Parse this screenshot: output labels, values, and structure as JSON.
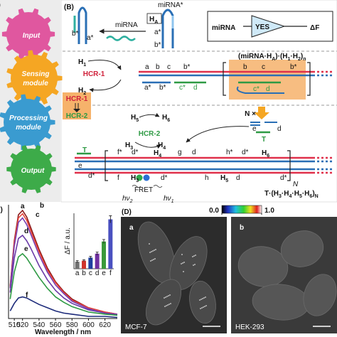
{
  "panel_a": {
    "label": "(A)",
    "modules": [
      [
        "Input"
      ],
      [
        "Sensing",
        "module"
      ],
      [
        "Processing",
        "module"
      ],
      [
        "Output"
      ]
    ]
  },
  "panel_b": {
    "label": "(B)",
    "mirna": "miRNA",
    "mirna_star": "miRNA*",
    "ha": [
      "H",
      "A"
    ],
    "gate": {
      "input": "miRNA",
      "logic": "YES",
      "output": "ΔF"
    },
    "hcr": [
      "HCR-1",
      "HCR-1",
      "HCR-2",
      "HCR-2"
    ],
    "h_labels": [
      [
        "H",
        "1"
      ],
      [
        "H",
        "2"
      ],
      [
        "H",
        "5"
      ],
      [
        "H",
        "6"
      ],
      [
        "H",
        "3"
      ],
      [
        "H",
        "4"
      ],
      [
        "H",
        "4"
      ],
      [
        "H",
        "6"
      ],
      [
        "H",
        "3"
      ],
      [
        "H",
        "5"
      ]
    ],
    "complex": [
      "(miRNA·H",
      "A",
      ")·(H",
      "1",
      "·H",
      "2",
      ")",
      "n"
    ],
    "domains": [
      "b*",
      "a*",
      "a*",
      "b*",
      "a",
      "b",
      "c",
      "b*",
      "a*",
      "b*",
      "c*",
      "d",
      "b",
      "c",
      "b*",
      "c*",
      "d",
      "e",
      "d",
      "f*",
      "d*",
      "g",
      "d",
      "h*",
      "d*",
      "f",
      "d*",
      "h",
      "d",
      "d*",
      "e",
      "d*"
    ],
    "n_times": "N ×",
    "n": "N",
    "t_labels": [
      "T",
      "T"
    ],
    "fret": "FRET",
    "photons": [
      [
        "hν",
        "2"
      ],
      [
        "hν",
        "1"
      ]
    ],
    "product": [
      "T·(H",
      "3",
      "·H",
      "4",
      "·H",
      "5",
      "·H",
      "6",
      ")",
      "N"
    ]
  },
  "panel_c": {
    "label": "(C)"
  },
  "chart_data": [
    {
      "type": "line",
      "x": [
        505,
        510,
        515,
        520,
        525,
        530,
        540,
        550,
        560,
        570,
        580,
        600,
        620,
        635
      ],
      "xlim": [
        503,
        635
      ],
      "xticks": [
        510,
        520,
        540,
        560,
        580,
        600,
        620
      ],
      "ylim": [
        0,
        100
      ],
      "x_label": "Wavelength / nm",
      "series": [
        {
          "name": "a",
          "color": "#8b1a1a",
          "values": [
            30,
            72,
            96,
            100,
            94,
            84,
            64,
            47,
            34,
            25,
            18,
            10,
            6,
            4
          ]
        },
        {
          "name": "b",
          "color": "#e8443a",
          "values": [
            29,
            70,
            93,
            97,
            91,
            81,
            62,
            45,
            33,
            24,
            17,
            10,
            6,
            4
          ]
        },
        {
          "name": "c",
          "color": "#7a3fb0",
          "values": [
            28,
            67,
            89,
            93,
            87,
            78,
            59,
            43,
            31,
            23,
            16,
            9,
            5,
            4
          ]
        },
        {
          "name": "d",
          "color": "#6a3aa8",
          "values": [
            24,
            56,
            74,
            77,
            72,
            65,
            49,
            36,
            26,
            19,
            14,
            8,
            5,
            3
          ]
        },
        {
          "name": "e",
          "color": "#2e9a44",
          "values": [
            18,
            43,
            57,
            60,
            56,
            50,
            38,
            28,
            20,
            15,
            11,
            6,
            4,
            3
          ]
        },
        {
          "name": "f",
          "color": "#1c2a7a",
          "values": [
            7,
            14,
            19,
            20,
            19,
            17,
            13,
            10,
            7,
            5,
            4,
            2,
            2,
            1
          ]
        }
      ]
    },
    {
      "type": "bar",
      "categories": [
        "a",
        "b",
        "c",
        "d",
        "e",
        "f"
      ],
      "values": [
        70,
        80,
        110,
        150,
        270,
        490
      ],
      "errors": [
        10,
        10,
        12,
        15,
        20,
        35
      ],
      "colors": [
        "#707070",
        "#d0342c",
        "#2040a0",
        "#7030a0",
        "#3a9a3a",
        "#4a50c0"
      ],
      "ylim": [
        0,
        550
      ],
      "y_label": "ΔF / a.u."
    }
  ],
  "panel_d": {
    "label": "(D)",
    "colorbar": {
      "range": [
        0,
        1
      ],
      "ticks": [
        {
          "value": 0,
          "label": "0.0"
        },
        {
          "value": 1,
          "label": "1.0"
        }
      ]
    },
    "images": [
      {
        "label": "a",
        "cell_line": "MCF-7"
      },
      {
        "label": "b",
        "cell_line": "HEK-293"
      }
    ]
  }
}
